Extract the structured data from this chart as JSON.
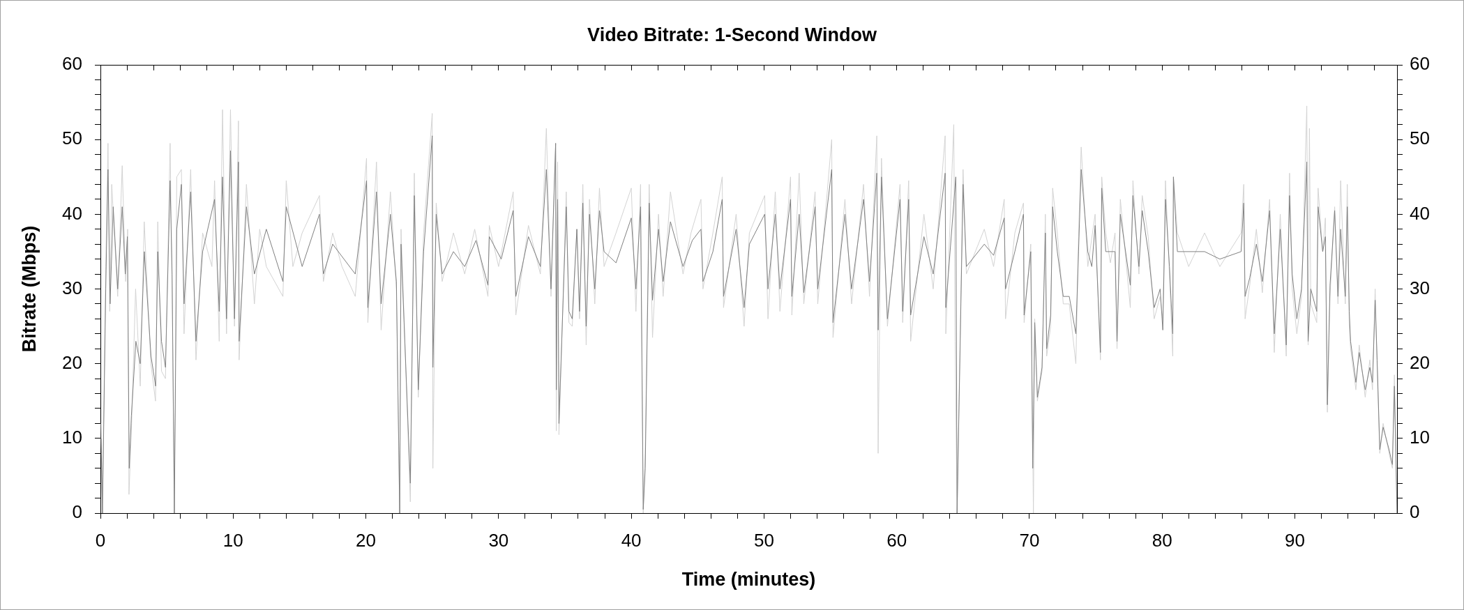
{
  "chart_data": {
    "type": "line",
    "title": "Video Bitrate: 1-Second Window",
    "xlabel": "Time (minutes)",
    "ylabel": "Bitrate (Mbps)",
    "xlim": [
      0,
      97.7
    ],
    "ylim": [
      0,
      60
    ],
    "y2lim": [
      0,
      60
    ],
    "marker": "none",
    "xticks": [
      0,
      {
        "value": 2,
        "label": null
      },
      {
        "value": 4,
        "label": null
      },
      {
        "value": 6,
        "label": null
      },
      {
        "value": 8,
        "label": null
      },
      10,
      {
        "value": 12,
        "label": null
      },
      {
        "value": 14,
        "label": null
      },
      {
        "value": 16,
        "label": null
      },
      {
        "value": 18,
        "label": null
      },
      20,
      {
        "value": 22,
        "label": null
      },
      {
        "value": 24,
        "label": null
      },
      {
        "value": 26,
        "label": null
      },
      {
        "value": 28,
        "label": null
      },
      30,
      {
        "value": 32,
        "label": null
      },
      {
        "value": 34,
        "label": null
      },
      {
        "value": 36,
        "label": null
      },
      {
        "value": 38,
        "label": null
      },
      40,
      {
        "value": 42,
        "label": null
      },
      {
        "value": 44,
        "label": null
      },
      {
        "value": 46,
        "label": null
      },
      {
        "value": 48,
        "label": null
      },
      50,
      {
        "value": 52,
        "label": null
      },
      {
        "value": 54,
        "label": null
      },
      {
        "value": 56,
        "label": null
      },
      {
        "value": 58,
        "label": null
      },
      60,
      {
        "value": 62,
        "label": null
      },
      {
        "value": 64,
        "label": null
      },
      {
        "value": 66,
        "label": null
      },
      {
        "value": 68,
        "label": null
      },
      70,
      {
        "value": 72,
        "label": null
      },
      {
        "value": 74,
        "label": null
      },
      {
        "value": 76,
        "label": null
      },
      {
        "value": 78,
        "label": null
      },
      80,
      {
        "value": 82,
        "label": null
      },
      {
        "value": 84,
        "label": null
      },
      {
        "value": 86,
        "label": null
      },
      {
        "value": 88,
        "label": null
      },
      90,
      {
        "value": 92,
        "label": null
      },
      {
        "value": 94,
        "label": null
      },
      {
        "value": 96,
        "label": null
      }
    ],
    "yticks": [
      0,
      {
        "value": 2,
        "label": null
      },
      {
        "value": 4,
        "label": null
      },
      {
        "value": 6,
        "label": null
      },
      {
        "value": 8,
        "label": null
      },
      10,
      {
        "value": 12,
        "label": null
      },
      {
        "value": 14,
        "label": null
      },
      {
        "value": 16,
        "label": null
      },
      {
        "value": 18,
        "label": null
      },
      20,
      {
        "value": 22,
        "label": null
      },
      {
        "value": 24,
        "label": null
      },
      {
        "value": 26,
        "label": null
      },
      {
        "value": 28,
        "label": null
      },
      30,
      {
        "value": 32,
        "label": null
      },
      {
        "value": 34,
        "label": null
      },
      {
        "value": 36,
        "label": null
      },
      {
        "value": 38,
        "label": null
      },
      40,
      {
        "value": 42,
        "label": null
      },
      {
        "value": 44,
        "label": null
      },
      {
        "value": 46,
        "label": null
      },
      {
        "value": 48,
        "label": null
      },
      50,
      {
        "value": 52,
        "label": null
      },
      {
        "value": 54,
        "label": null
      },
      {
        "value": 56,
        "label": null
      },
      {
        "value": 58,
        "label": null
      },
      60
    ],
    "y2ticks": [
      0,
      {
        "value": 2,
        "label": null
      },
      {
        "value": 4,
        "label": null
      },
      {
        "value": 6,
        "label": null
      },
      {
        "value": 8,
        "label": null
      },
      10,
      {
        "value": 12,
        "label": null
      },
      {
        "value": 14,
        "label": null
      },
      {
        "value": 16,
        "label": null
      },
      {
        "value": 18,
        "label": null
      },
      20,
      {
        "value": 22,
        "label": null
      },
      {
        "value": 24,
        "label": null
      },
      {
        "value": 26,
        "label": null
      },
      {
        "value": 28,
        "label": null
      },
      30,
      {
        "value": 32,
        "label": null
      },
      {
        "value": 34,
        "label": null
      },
      {
        "value": 36,
        "label": null
      },
      {
        "value": 38,
        "label": null
      },
      40,
      {
        "value": 42,
        "label": null
      },
      {
        "value": 44,
        "label": null
      },
      {
        "value": 46,
        "label": null
      },
      {
        "value": 48,
        "label": null
      },
      50,
      {
        "value": 52,
        "label": null
      },
      {
        "value": 54,
        "label": null
      },
      {
        "value": 56,
        "label": null
      },
      {
        "value": 58,
        "label": null
      },
      60
    ],
    "series": [
      {
        "color": "#d3d3d3",
        "x": [
          0.05,
          0.15,
          0.4,
          0.57,
          0.7,
          0.85,
          1.3,
          1.64,
          1.9,
          2.05,
          2.15,
          2.35,
          2.65,
          3.0,
          3.3,
          3.8,
          4.15,
          4.32,
          4.6,
          4.9,
          5.25,
          5.4,
          5.57,
          5.75,
          6.1,
          6.3,
          6.8,
          7.2,
          7.7,
          8.4,
          8.6,
          8.95,
          9.2,
          9.5,
          9.8,
          10.1,
          10.4,
          10.45,
          11.0,
          11.6,
          12.0,
          12.5,
          13.75,
          14.0,
          14.5,
          15.2,
          16.5,
          16.8,
          17.5,
          18.2,
          19.2,
          19.6,
          20.05,
          20.15,
          20.8,
          21.15,
          21.85,
          22.3,
          22.55,
          22.65,
          23.35,
          23.65,
          23.95,
          24.35,
          25.0,
          25.05,
          25.3,
          25.75,
          26.6,
          27.45,
          28.2,
          29.2,
          29.3,
          30.0,
          31.1,
          31.3,
          32.25,
          33.15,
          33.6,
          33.95,
          34.3,
          34.35,
          34.45,
          34.55,
          35.1,
          35.3,
          35.55,
          35.9,
          36.1,
          36.35,
          36.6,
          36.85,
          37.25,
          37.6,
          37.95,
          38.85,
          40.0,
          40.35,
          40.7,
          40.9,
          41.05,
          41.35,
          41.6,
          42.05,
          42.4,
          42.95,
          43.9,
          44.5,
          45.25,
          45.4,
          46.15,
          46.85,
          46.95,
          47.9,
          48.5,
          48.9,
          50.05,
          50.3,
          50.85,
          51.2,
          52.0,
          52.1,
          52.65,
          53.0,
          53.85,
          54.05,
          55.1,
          55.2,
          56.1,
          56.6,
          57.5,
          57.95,
          58.5,
          58.6,
          58.85,
          59.3,
          60.25,
          60.45,
          60.9,
          61.05,
          62.05,
          62.75,
          63.65,
          63.7,
          64.3,
          64.4,
          64.55,
          65.0,
          65.25,
          66.6,
          67.3,
          68.1,
          68.2,
          68.9,
          69.55,
          69.6,
          70.1,
          70.3,
          70.4,
          70.6,
          70.95,
          71.2,
          71.3,
          71.6,
          71.75,
          72.1,
          72.55,
          73.0,
          73.5,
          73.7,
          73.9,
          74.4,
          74.95,
          75.35,
          75.45,
          75.75,
          76.1,
          76.45,
          76.6,
          76.85,
          77.6,
          77.8,
          78.25,
          78.5,
          78.95,
          79.4,
          79.85,
          80.05,
          80.25,
          80.55,
          80.8,
          80.85,
          81.15,
          82.0,
          83.2,
          84.35,
          85.95,
          86.15,
          86.25,
          86.6,
          87.1,
          87.55,
          88.1,
          88.45,
          88.9,
          89.35,
          89.6,
          89.8,
          90.15,
          90.5,
          90.9,
          91.0,
          91.1,
          91.2,
          91.65,
          91.75,
          92.1,
          92.3,
          92.45,
          92.65,
          93.0,
          93.25,
          93.45,
          93.8,
          93.95,
          94.1,
          94.2,
          94.6,
          94.85,
          95.3,
          95.65,
          95.85,
          96.05,
          96.2,
          96.4,
          96.65,
          97.1,
          97.35,
          97.5,
          97.7
        ],
        "values": [
          12,
          0,
          33,
          49.5,
          27,
          44,
          29,
          46.5,
          31,
          38,
          2.5,
          12,
          30,
          17,
          39,
          20,
          15,
          39,
          19,
          18,
          49.5,
          30,
          0,
          45,
          46,
          24,
          46,
          20.5,
          37.5,
          33,
          44.5,
          23,
          54,
          24,
          54,
          25,
          52.5,
          20.5,
          44,
          28,
          38,
          33,
          29,
          44.5,
          33,
          37.5,
          42.5,
          31,
          37.5,
          33,
          29,
          37.5,
          47.5,
          25.5,
          47,
          24.5,
          43,
          30,
          0,
          38,
          1.5,
          45.5,
          15.5,
          37.5,
          53.5,
          6,
          41.5,
          31,
          37.5,
          32,
          38,
          29,
          38.5,
          33,
          43,
          26.5,
          38.5,
          32,
          51.5,
          29,
          49.5,
          11,
          47,
          10.5,
          43,
          25.5,
          25,
          38,
          26,
          44,
          22.5,
          42,
          28,
          43.5,
          33,
          37.5,
          43.5,
          27,
          44,
          0,
          8,
          44,
          23.5,
          40,
          29,
          43,
          32,
          37.5,
          42,
          30,
          37.5,
          45,
          27.5,
          40,
          25,
          37.5,
          42.5,
          26,
          43,
          27,
          45,
          26.5,
          45.5,
          28,
          43,
          28,
          50,
          23.5,
          42,
          28,
          44,
          29,
          50.5,
          8,
          47.5,
          25,
          44,
          25.5,
          44.5,
          23,
          40,
          30,
          50.5,
          24,
          52,
          23,
          0,
          46,
          32,
          38,
          33,
          42,
          26,
          37.5,
          41.5,
          25.5,
          36,
          0,
          26,
          15,
          19,
          40,
          21,
          25,
          43.5,
          37.5,
          28,
          28,
          20,
          37,
          49,
          33,
          40,
          20.5,
          45,
          37.5,
          33.5,
          37.5,
          22,
          42,
          27.5,
          44.5,
          32,
          42.5,
          37,
          26,
          29,
          26,
          44.5,
          32,
          21,
          45,
          37.5,
          33,
          37.5,
          33,
          37.5,
          44,
          26,
          30.5,
          38,
          29.5,
          42,
          21.5,
          40,
          21,
          45.5,
          30,
          24,
          29,
          54.5,
          22.5,
          51.5,
          28,
          25.5,
          43.5,
          35,
          39.5,
          13.5,
          29,
          41,
          28,
          44.5,
          28,
          44,
          25,
          22,
          16.5,
          22.5,
          15.5,
          20.5,
          16.5,
          30,
          19.5,
          8,
          12,
          8,
          6,
          18.5,
          0
        ]
      },
      {
        "color": "#808080",
        "x": [
          0.05,
          0.15,
          0.4,
          0.57,
          0.73,
          0.96,
          1.3,
          1.64,
          1.87,
          2.03,
          2.17,
          2.33,
          2.67,
          3.0,
          3.31,
          3.81,
          4.16,
          4.32,
          4.6,
          4.9,
          5.25,
          5.4,
          5.57,
          5.75,
          6.1,
          6.3,
          6.8,
          7.2,
          7.7,
          8.6,
          8.95,
          9.2,
          9.5,
          9.8,
          10.1,
          10.4,
          10.45,
          11.0,
          11.6,
          12.5,
          13.75,
          14.0,
          15.2,
          16.5,
          16.8,
          17.5,
          19.2,
          20.05,
          20.15,
          20.8,
          21.15,
          21.85,
          22.3,
          22.55,
          22.65,
          23.35,
          23.65,
          23.95,
          24.35,
          25.0,
          25.05,
          25.3,
          25.75,
          26.6,
          27.45,
          28.3,
          29.2,
          29.3,
          30.2,
          31.1,
          31.3,
          32.25,
          33.15,
          33.6,
          33.95,
          34.3,
          34.35,
          34.45,
          34.55,
          35.1,
          35.3,
          35.55,
          35.9,
          36.1,
          36.35,
          36.6,
          36.85,
          37.25,
          37.6,
          37.95,
          38.85,
          40.0,
          40.35,
          40.7,
          40.9,
          41.05,
          41.35,
          41.6,
          42.05,
          42.4,
          42.95,
          43.9,
          44.6,
          45.25,
          45.4,
          46.15,
          46.85,
          46.95,
          47.9,
          48.5,
          48.9,
          50.05,
          50.3,
          50.85,
          51.2,
          52.0,
          52.1,
          52.65,
          53.0,
          53.85,
          54.05,
          55.1,
          55.2,
          56.1,
          56.6,
          57.5,
          57.95,
          58.5,
          58.6,
          58.85,
          59.3,
          60.25,
          60.45,
          60.9,
          61.05,
          62.05,
          62.75,
          63.65,
          63.7,
          64.45,
          64.55,
          65.0,
          65.25,
          66.6,
          67.3,
          68.1,
          68.2,
          68.9,
          69.55,
          69.6,
          70.1,
          70.25,
          70.4,
          70.6,
          70.95,
          71.2,
          71.3,
          71.6,
          71.75,
          72.1,
          72.55,
          73.0,
          73.5,
          73.7,
          73.9,
          74.4,
          74.7,
          74.95,
          75.35,
          75.45,
          75.75,
          76.45,
          76.6,
          76.85,
          77.6,
          77.8,
          78.25,
          78.5,
          78.95,
          79.4,
          79.85,
          80.05,
          80.25,
          80.55,
          80.8,
          80.85,
          81.15,
          83.2,
          84.35,
          85.95,
          86.15,
          86.25,
          86.6,
          87.1,
          87.55,
          88.1,
          88.45,
          88.9,
          89.35,
          89.6,
          89.8,
          90.15,
          90.5,
          90.9,
          91.0,
          91.2,
          91.65,
          91.75,
          92.1,
          92.3,
          92.45,
          92.65,
          93.0,
          93.25,
          93.45,
          93.8,
          93.95,
          94.1,
          94.2,
          94.6,
          94.85,
          95.3,
          95.65,
          95.85,
          96.05,
          96.2,
          96.4,
          96.65,
          97.1,
          97.35,
          97.5,
          97.7
        ],
        "values": [
          10,
          0,
          30,
          46,
          28,
          41,
          30,
          41,
          32,
          37,
          6,
          13,
          23,
          20,
          35,
          21,
          17,
          35,
          23,
          19.5,
          44.5,
          32,
          0,
          38,
          44,
          28,
          43,
          23,
          35,
          42,
          27,
          45,
          26,
          48.5,
          26,
          47,
          23,
          41,
          32,
          38,
          31,
          41,
          33,
          40,
          32,
          36,
          32,
          44.5,
          27.5,
          43,
          28,
          40,
          31,
          0,
          36,
          4,
          42.5,
          16.5,
          35,
          50.5,
          19.5,
          40,
          32,
          35,
          33,
          36.5,
          30.5,
          37,
          34,
          40.5,
          29,
          37,
          33,
          46,
          30,
          49.5,
          16.5,
          42,
          12,
          41,
          27,
          26,
          38,
          27,
          41.5,
          25,
          40,
          30,
          40.5,
          35,
          33.5,
          39.5,
          30,
          41,
          0.5,
          6,
          41.5,
          28.5,
          38,
          31,
          39,
          33,
          36.5,
          38,
          31,
          35,
          42,
          29,
          38,
          27.5,
          36,
          40,
          30,
          40,
          30,
          42,
          29,
          40,
          29.5,
          41,
          30,
          46,
          25.5,
          40,
          30,
          42,
          31,
          45.5,
          24.5,
          45,
          26,
          42,
          27,
          42,
          26.5,
          37,
          32,
          45.5,
          27.5,
          45,
          0,
          44,
          33,
          36,
          34.5,
          39.5,
          30,
          35,
          40,
          26.5,
          35,
          6,
          25.5,
          15.5,
          19.5,
          37.5,
          22,
          26.5,
          41,
          35,
          29,
          29,
          24,
          35,
          46,
          35,
          33,
          38.5,
          21.5,
          43.5,
          35,
          35,
          23,
          40,
          30.5,
          42.5,
          33,
          40.5,
          35,
          27.5,
          30,
          24.5,
          42,
          33,
          24,
          45,
          35,
          35,
          34,
          35,
          41.5,
          29,
          31.5,
          36,
          31,
          40.5,
          24,
          38,
          22.5,
          42.5,
          32,
          26,
          30,
          47,
          23,
          30,
          27,
          41,
          35,
          37,
          14.5,
          30.5,
          40.5,
          29,
          38,
          29,
          41,
          27,
          23,
          17.5,
          21.5,
          16.5,
          19.5,
          17.5,
          28.5,
          20.5,
          8.5,
          11.5,
          8.5,
          6.5,
          17,
          0
        ]
      }
    ]
  }
}
